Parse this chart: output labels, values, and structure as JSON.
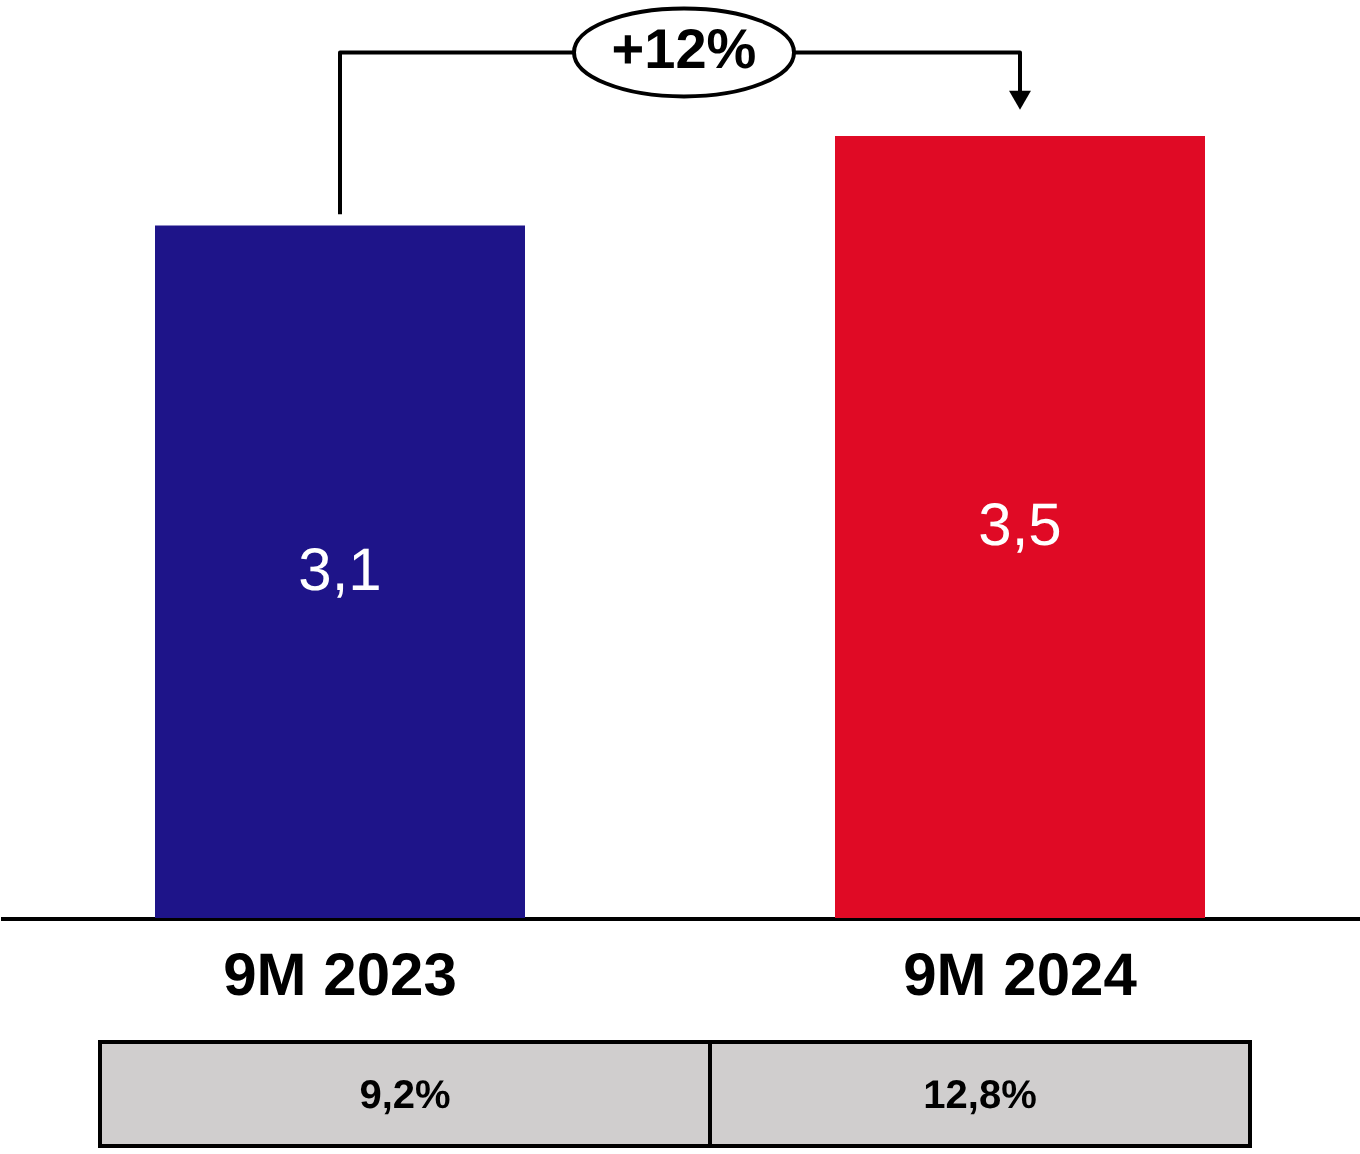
{
  "chart_data": {
    "type": "bar",
    "categories": [
      "9M 2023",
      "9M 2024"
    ],
    "values": [
      3.1,
      3.5
    ],
    "colors": [
      "#1e1489",
      "#e00a25"
    ],
    "value_labels": [
      "3,1",
      "3,5"
    ],
    "ylim": [
      0,
      4.1
    ],
    "grid": false,
    "annotations": [
      "+12%",
      "9,2%",
      "12,8%"
    ]
  }
}
